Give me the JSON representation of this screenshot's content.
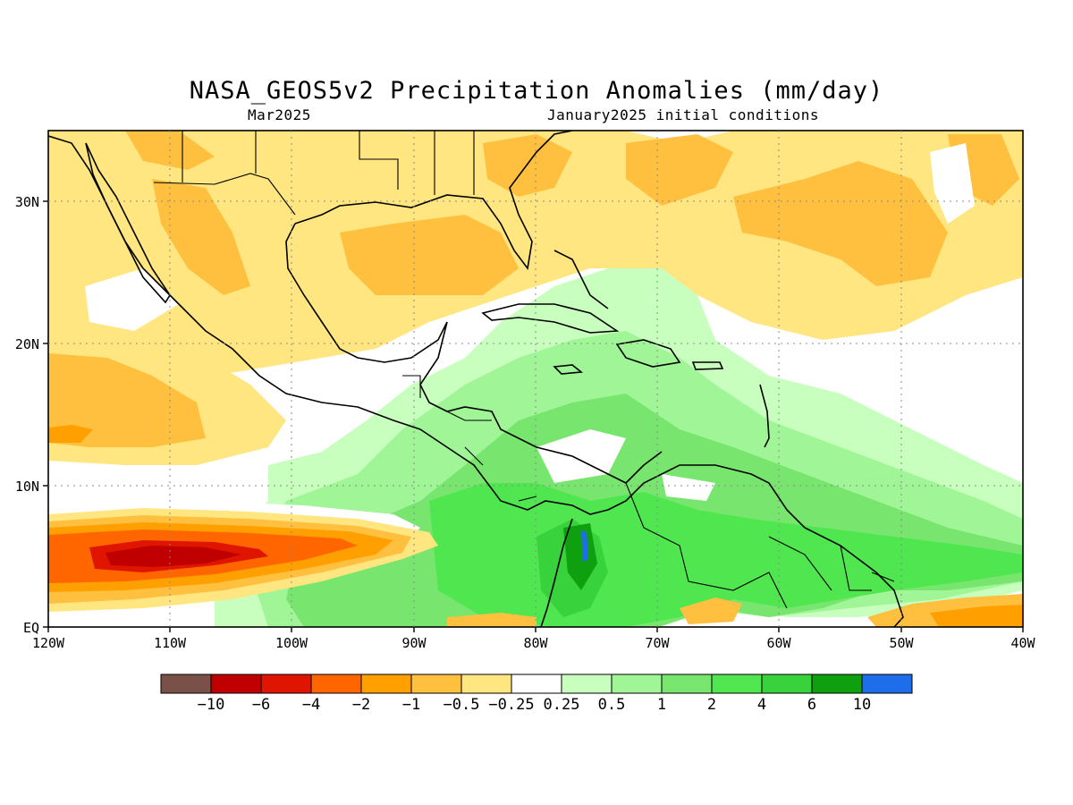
{
  "header": {
    "title": "NASA_GEOS5v2 Precipitation Anomalies (mm/day)",
    "valid_month": "Mar2025",
    "initial_conditions": "January2025 initial conditions"
  },
  "axes": {
    "lon_labels": [
      "120W",
      "110W",
      "100W",
      "90W",
      "80W",
      "70W",
      "60W",
      "50W",
      "40W"
    ],
    "lat_labels": [
      "EQ",
      "10N",
      "20N",
      "30N"
    ],
    "lon_range": [
      -120,
      -40
    ],
    "lat_range": [
      0,
      35
    ],
    "grid": "dotted"
  },
  "colorbar": {
    "colors": [
      "#7a5148",
      "#c00000",
      "#e01500",
      "#ff6600",
      "#ff9f00",
      "#ffc040",
      "#ffe680",
      "#ffffff",
      "#c8ffbe",
      "#a0f596",
      "#78e66e",
      "#50e650",
      "#37d23c",
      "#0fa00f",
      "#1e6eeb"
    ],
    "labels": [
      "−10",
      "−6",
      "−4",
      "−2",
      "−1",
      "−0.5",
      "−0.25",
      "0.25",
      "0.5",
      "1",
      "2",
      "4",
      "6",
      "10"
    ]
  },
  "colors": {
    "coast": "#000000",
    "wet_light": "#c8ffbe",
    "wet_mid": "#a0f596",
    "wet": "#78e66e",
    "wet_strong": "#50e650",
    "dry_light": "#ffe680",
    "dry": "#ffc040",
    "dry_mid": "#ff9f00",
    "dry_strong": "#ff6600",
    "dry_extreme": "#e01500"
  }
}
